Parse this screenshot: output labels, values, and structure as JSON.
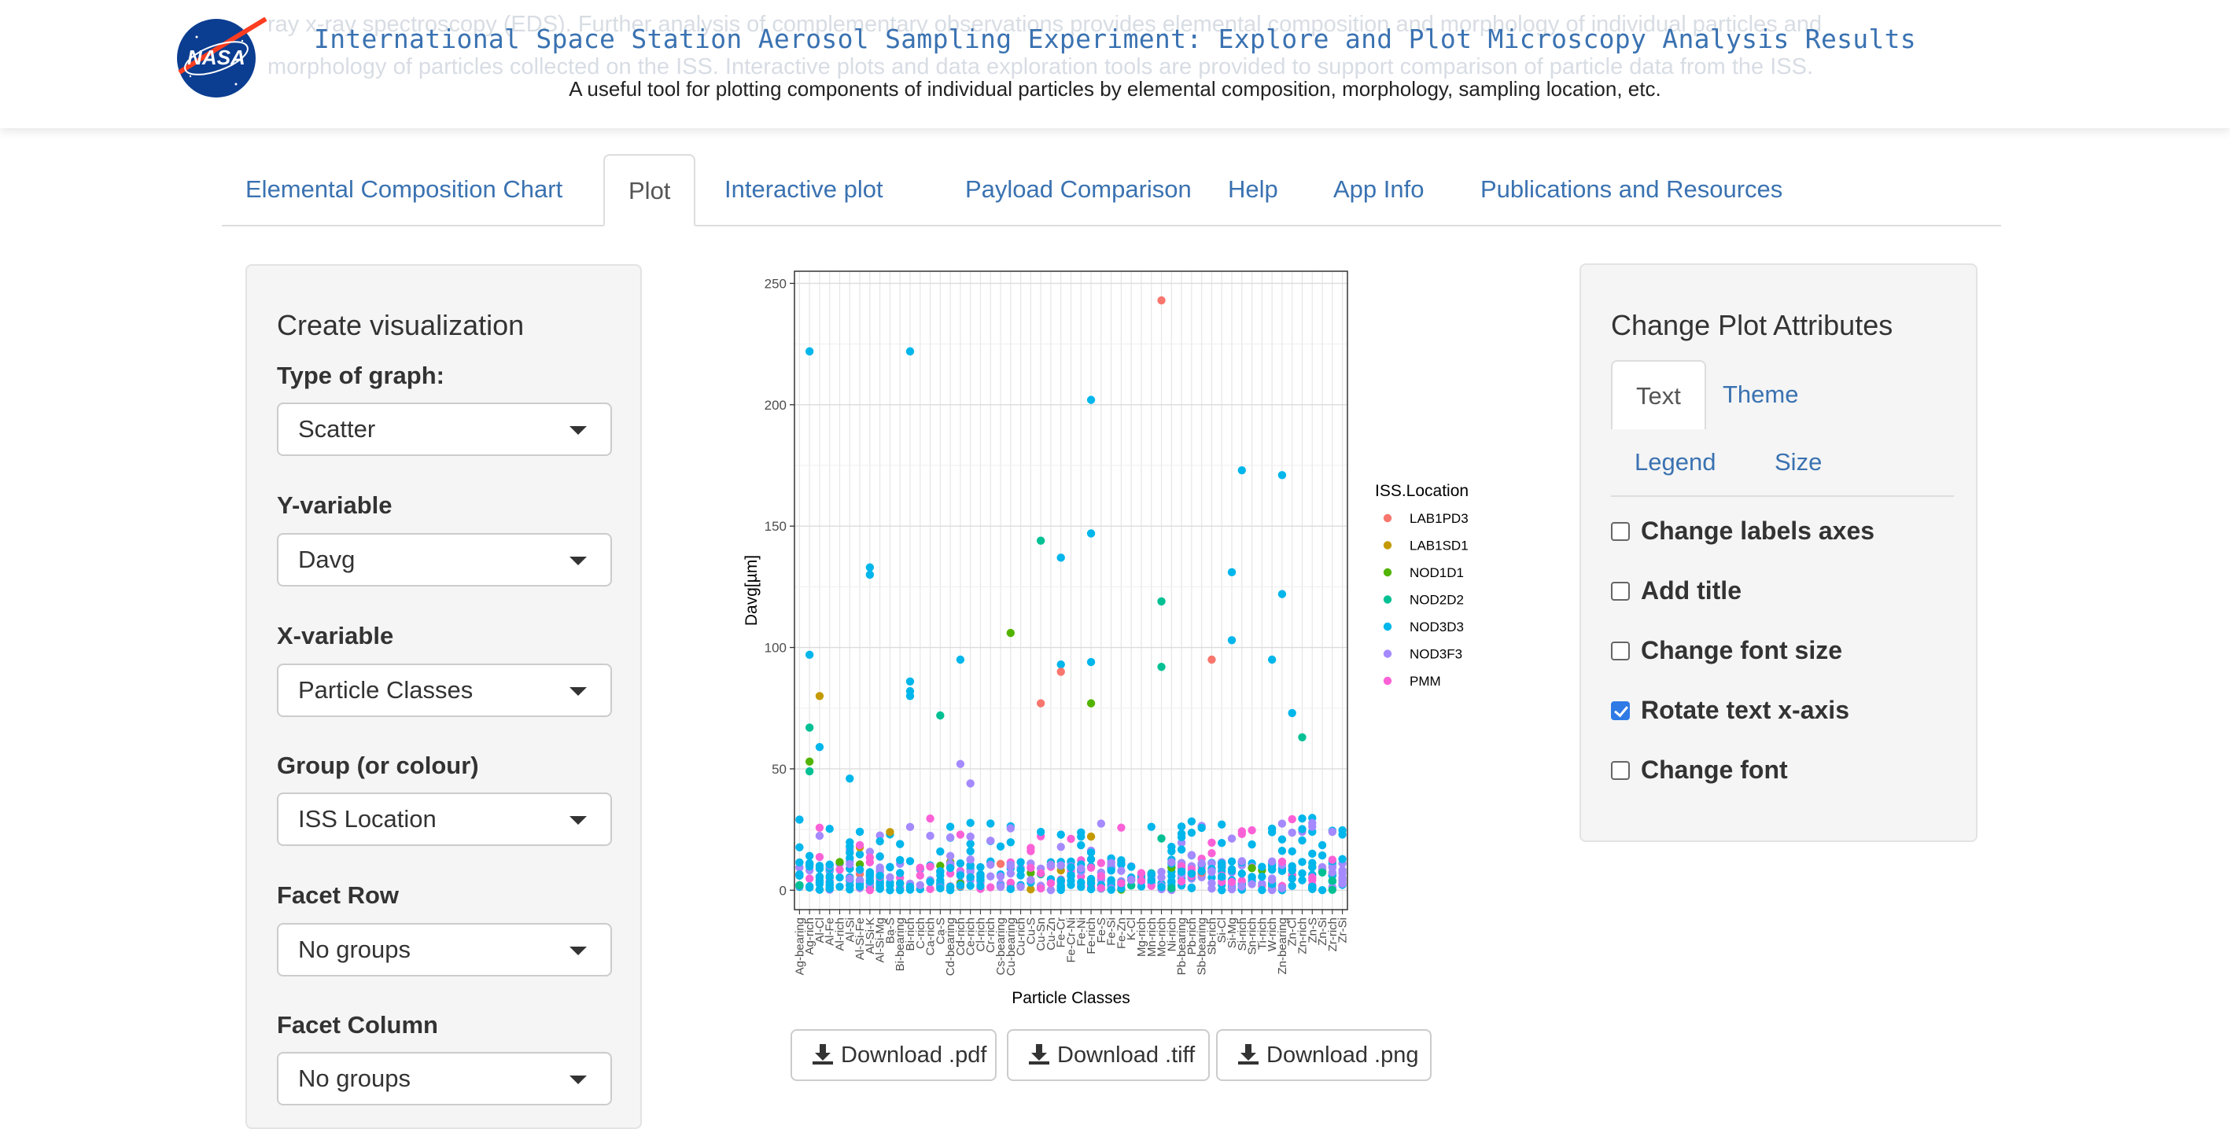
{
  "header": {
    "title": "International Space Station Aerosol Sampling Experiment: Explore and Plot Microscopy Analysis Results",
    "subtitle": "A useful tool for plotting components of individual particles by elemental composition, morphology, sampling location, etc.",
    "logo_text": "NASA",
    "ghost_lines": [
      "ray x-ray spectroscopy (EDS). Further analysis of complementary observations provides elemental composition and morphology of individual particles and",
      "morphology of particles collected on the ISS. Interactive plots and data exploration tools are provided to support comparison of particle data from the ISS."
    ]
  },
  "tabs": [
    {
      "label": "Elemental Composition Chart",
      "active": false
    },
    {
      "label": "Plot",
      "active": true
    },
    {
      "label": "Interactive plot",
      "active": false
    },
    {
      "label": "Payload Comparison",
      "active": false
    },
    {
      "label": "Help",
      "active": false
    },
    {
      "label": "App Info",
      "active": false
    },
    {
      "label": "Publications and Resources",
      "active": false
    }
  ],
  "sidebar": {
    "title": "Create visualization",
    "fields": [
      {
        "label": "Type of graph:",
        "value": "Scatter"
      },
      {
        "label": "Y-variable",
        "value": "Davg"
      },
      {
        "label": "X-variable",
        "value": "Particle Classes"
      },
      {
        "label": "Group (or colour)",
        "value": "ISS Location"
      },
      {
        "label": "Facet Row",
        "value": "No groups"
      },
      {
        "label": "Facet Column",
        "value": "No groups"
      }
    ]
  },
  "chart_data": {
    "type": "scatter",
    "xlabel": "Particle Classes",
    "ylabel": "Davg[µm]",
    "ylim": [
      -8,
      255
    ],
    "yticks": [
      0,
      50,
      100,
      150,
      200,
      250
    ],
    "legend_title": "ISS.Location",
    "legend_position": "right",
    "grid": true,
    "categories": [
      "Ag-bearing",
      "Ag-rich",
      "Al-Cl",
      "Al-Fe",
      "Al-rich",
      "Al-Si",
      "Al-Si-Fe",
      "Al-Si-K",
      "Al-Si-Mg",
      "Ba-S",
      "Bi-bearing",
      "Bi-rich",
      "C-rich",
      "Ca-rich",
      "Ca-S",
      "Cd-bearing",
      "Cd-rich",
      "Ce-rich",
      "Cl-rich",
      "Cr-rich",
      "Cs-bearing",
      "Cu-bearing",
      "Cu-rich",
      "Cu-S",
      "Cu-Sn",
      "Cu-Zn",
      "Fe-Cr",
      "Fe-Cr-Ni",
      "Fe-Ni",
      "Fe-rich",
      "Fe-S",
      "Fe-Si",
      "Fe-Zn",
      "K-Cl",
      "Mg-rich",
      "Mn-rich",
      "Mo-rich",
      "Ni-rich",
      "Pb-bearing",
      "Pb-rich",
      "Sb-bearing",
      "Sb-rich",
      "Si-Cl",
      "Si-Mg",
      "Si-rich",
      "Sn-rich",
      "Ti-rich",
      "W-rich",
      "Zn-bearing",
      "Zn-Cl",
      "Zn-rich",
      "Zn-S",
      "Zn-Si",
      "Zr-rich",
      "Zr-Si"
    ],
    "series": [
      {
        "name": "LAB1PD3",
        "color": "#F8766D"
      },
      {
        "name": "LAB1SD1",
        "color": "#C49A00"
      },
      {
        "name": "NOD1D1",
        "color": "#53B400"
      },
      {
        "name": "NOD2D2",
        "color": "#00C094"
      },
      {
        "name": "NOD3D3",
        "color": "#00B6EB"
      },
      {
        "name": "NOD3F3",
        "color": "#A58AFF"
      },
      {
        "name": "PMM",
        "color": "#FB61D7"
      }
    ],
    "outliers": [
      {
        "x": "Ag-rich",
        "y": 222,
        "series": "NOD3D3"
      },
      {
        "x": "Ag-rich",
        "y": 97,
        "series": "NOD3D3"
      },
      {
        "x": "Ag-rich",
        "y": 67,
        "series": "NOD2D2"
      },
      {
        "x": "Ag-rich",
        "y": 53,
        "series": "NOD1D1"
      },
      {
        "x": "Ag-rich",
        "y": 49,
        "series": "NOD2D2"
      },
      {
        "x": "Al-Cl",
        "y": 80,
        "series": "LAB1SD1"
      },
      {
        "x": "Al-Cl",
        "y": 59,
        "series": "NOD3D3"
      },
      {
        "x": "Al-Si-K",
        "y": 133,
        "series": "NOD3D3"
      },
      {
        "x": "Al-Si-K",
        "y": 130,
        "series": "NOD3D3"
      },
      {
        "x": "Al-Si",
        "y": 46,
        "series": "NOD3D3"
      },
      {
        "x": "Bi-rich",
        "y": 222,
        "series": "NOD3D3"
      },
      {
        "x": "Bi-rich",
        "y": 86,
        "series": "NOD3D3"
      },
      {
        "x": "Bi-rich",
        "y": 82,
        "series": "NOD3D3"
      },
      {
        "x": "Bi-rich",
        "y": 80,
        "series": "NOD3D3"
      },
      {
        "x": "Ca-S",
        "y": 72,
        "series": "NOD2D2"
      },
      {
        "x": "Cd-rich",
        "y": 95,
        "series": "NOD3D3"
      },
      {
        "x": "Cd-rich",
        "y": 52,
        "series": "NOD3F3"
      },
      {
        "x": "Ce-rich",
        "y": 44,
        "series": "NOD3F3"
      },
      {
        "x": "Cu-bearing",
        "y": 106,
        "series": "NOD1D1"
      },
      {
        "x": "Cu-Sn",
        "y": 144,
        "series": "NOD2D2"
      },
      {
        "x": "Cu-Sn",
        "y": 77,
        "series": "LAB1PD3"
      },
      {
        "x": "Fe-Cr",
        "y": 137,
        "series": "NOD3D3"
      },
      {
        "x": "Fe-Cr",
        "y": 93,
        "series": "NOD3D3"
      },
      {
        "x": "Fe-Cr",
        "y": 90,
        "series": "LAB1PD3"
      },
      {
        "x": "Fe-rich",
        "y": 202,
        "series": "NOD3D3"
      },
      {
        "x": "Fe-rich",
        "y": 147,
        "series": "NOD3D3"
      },
      {
        "x": "Fe-rich",
        "y": 94,
        "series": "NOD3D3"
      },
      {
        "x": "Fe-rich",
        "y": 77,
        "series": "NOD1D1"
      },
      {
        "x": "Mo-rich",
        "y": 243,
        "series": "LAB1PD3"
      },
      {
        "x": "Mo-rich",
        "y": 119,
        "series": "NOD2D2"
      },
      {
        "x": "Mo-rich",
        "y": 92,
        "series": "NOD2D2"
      },
      {
        "x": "Sb-rich",
        "y": 95,
        "series": "LAB1PD3"
      },
      {
        "x": "Si-rich",
        "y": 173,
        "series": "NOD3D3"
      },
      {
        "x": "Si-Mg",
        "y": 131,
        "series": "NOD3D3"
      },
      {
        "x": "Si-Mg",
        "y": 103,
        "series": "NOD3D3"
      },
      {
        "x": "Zn-bearing",
        "y": 171,
        "series": "NOD3D3"
      },
      {
        "x": "Zn-bearing",
        "y": 122,
        "series": "NOD3D3"
      },
      {
        "x": "W-rich",
        "y": 95,
        "series": "NOD3D3"
      },
      {
        "x": "Zn-Cl",
        "y": 73,
        "series": "NOD3D3"
      },
      {
        "x": "Zn-rich",
        "y": 63,
        "series": "NOD2D2"
      }
    ]
  },
  "downloads": [
    {
      "label": "Download .pdf"
    },
    {
      "label": "Download .tiff"
    },
    {
      "label": "Download .png"
    }
  ],
  "right_panel": {
    "title": "Change Plot Attributes",
    "tabs": [
      {
        "label": "Text",
        "active": true
      },
      {
        "label": "Theme",
        "active": false
      },
      {
        "label": "Legend",
        "active": false
      },
      {
        "label": "Size",
        "active": false
      }
    ],
    "checkboxes": [
      {
        "label": "Change labels axes",
        "checked": false
      },
      {
        "label": "Add title",
        "checked": false
      },
      {
        "label": "Change font size",
        "checked": false
      },
      {
        "label": "Rotate text x-axis",
        "checked": true
      },
      {
        "label": "Change font",
        "checked": false
      }
    ]
  }
}
